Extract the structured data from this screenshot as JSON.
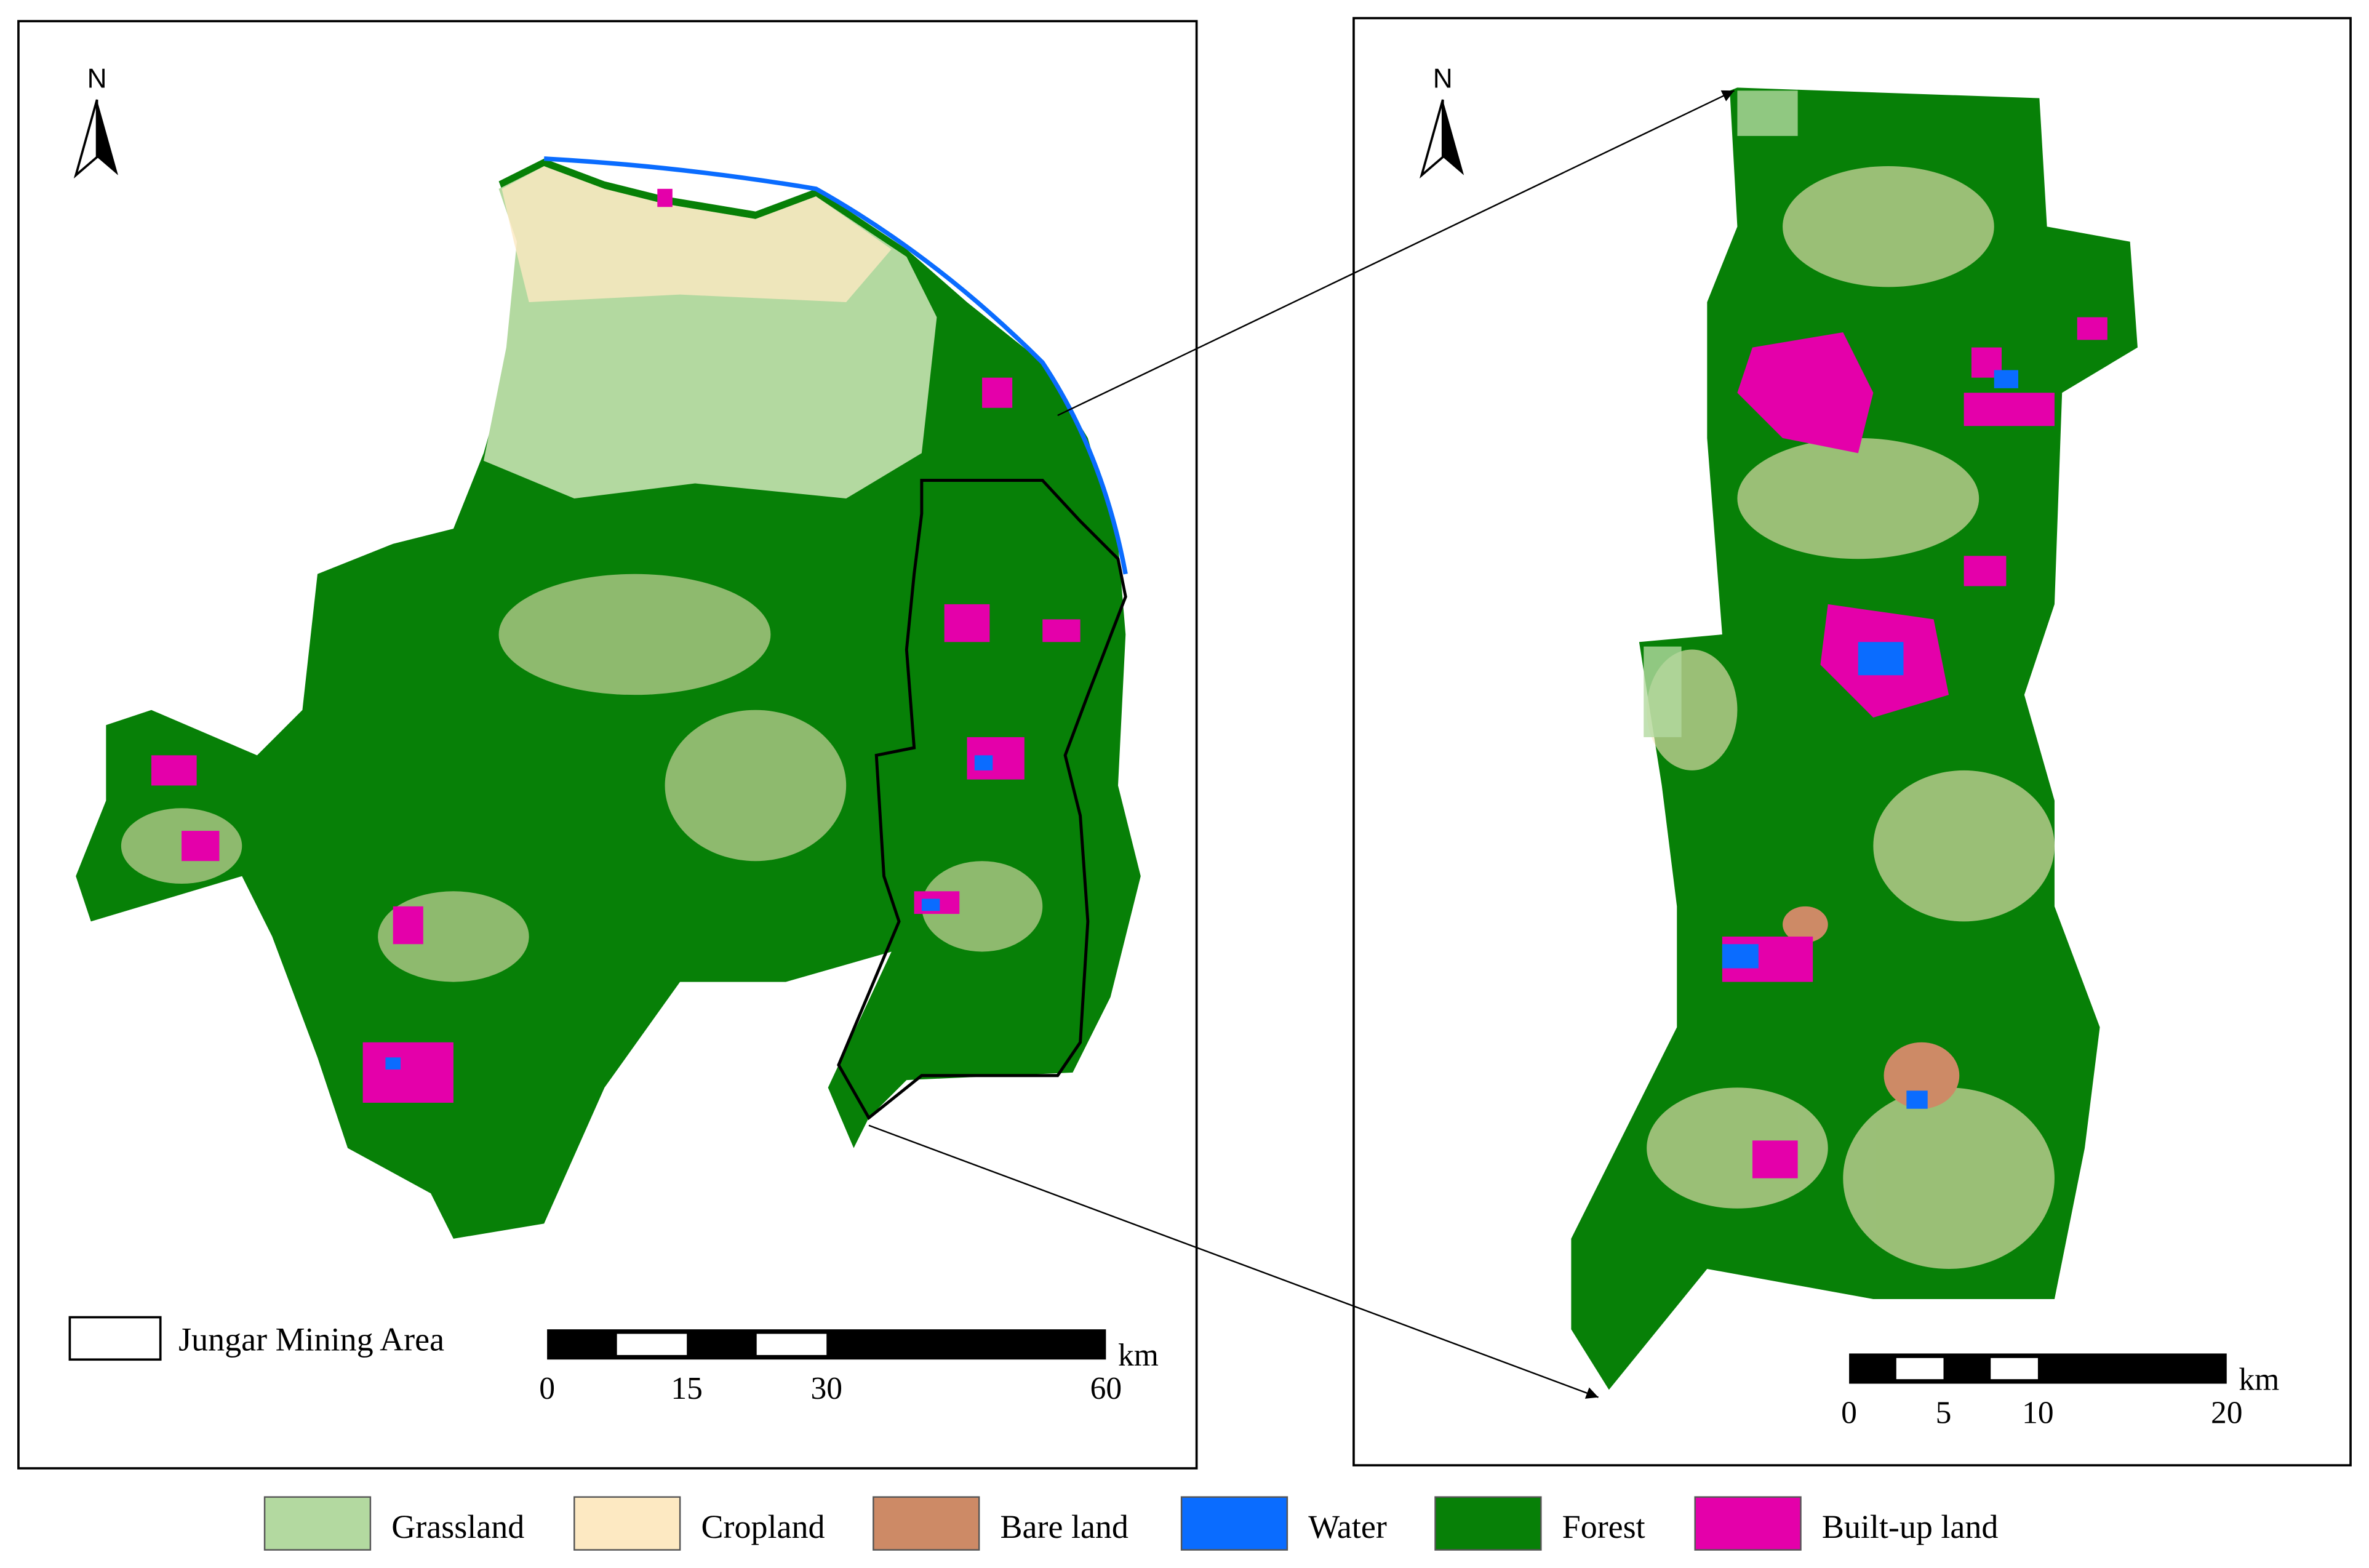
{
  "left_map": {
    "north": "N",
    "boundary_label": "Jungar Mining Area",
    "scale": {
      "unit": "km",
      "ticks": [
        0,
        15,
        30,
        60
      ]
    }
  },
  "right_map": {
    "north": "N",
    "scale": {
      "unit": "km",
      "ticks": [
        0,
        5,
        10,
        20
      ]
    }
  },
  "legend": [
    {
      "label": "Grassland",
      "color": "#b3d9a0"
    },
    {
      "label": "Cropland",
      "color": "#fde9c2"
    },
    {
      "label": "Bare land",
      "color": "#cd8a66"
    },
    {
      "label": "Water",
      "color": "#0a6cff"
    },
    {
      "label": "Forest",
      "color": "#078007"
    },
    {
      "label": "Built-up land",
      "color": "#e400aa"
    }
  ]
}
